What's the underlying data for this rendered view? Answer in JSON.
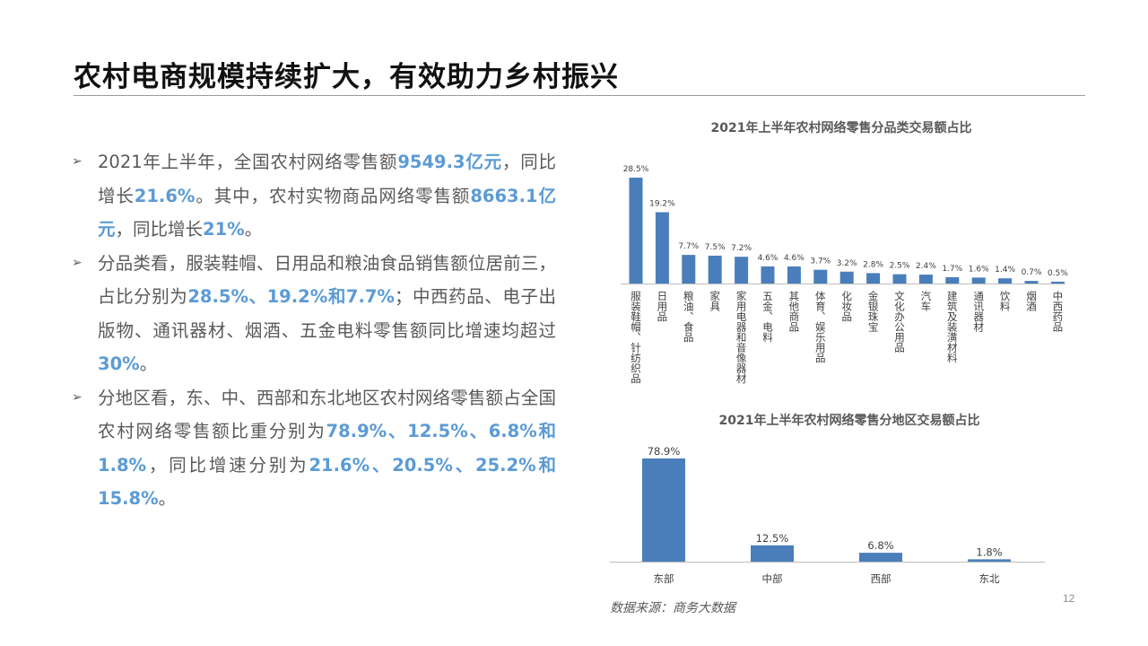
{
  "slide": {
    "title": "农村电商规模持续扩大，有效助力乡村振兴",
    "page_number": "12",
    "source": "数据来源：商务大数据",
    "accent_color": "#5b9bd5",
    "bar_color": "#4a7ebb"
  },
  "bullets": [
    {
      "runs": [
        {
          "text": "2021年上半年，全国农村网络零售额",
          "hl": false
        },
        {
          "text": "9549.3亿元",
          "hl": true
        },
        {
          "text": "，同比增长",
          "hl": false
        },
        {
          "text": "21.6%",
          "hl": true
        },
        {
          "text": "。其中，农村实物商品网络零售额",
          "hl": false
        },
        {
          "text": "8663.1亿元",
          "hl": true
        },
        {
          "text": "，同比增长",
          "hl": false
        },
        {
          "text": "21%",
          "hl": true
        },
        {
          "text": "。",
          "hl": false
        }
      ]
    },
    {
      "runs": [
        {
          "text": "分品类看，服装鞋帽、日用品和粮油食品销售额位居前三，占比分别为",
          "hl": false
        },
        {
          "text": "28.5%、19.2%和7.7%",
          "hl": true
        },
        {
          "text": "；中西药品、电子出版物、通讯器材、烟酒、五金电料零售额同比增速均超过",
          "hl": false
        },
        {
          "text": "30%",
          "hl": true
        },
        {
          "text": "。",
          "hl": false
        }
      ]
    },
    {
      "runs": [
        {
          "text": "分地区看，东、中、西部和东北地区农村网络零售额占全国农村网络零售额比重分别为",
          "hl": false
        },
        {
          "text": "78.9%、12.5%、6.8%和1.8%",
          "hl": true
        },
        {
          "text": "，同比增速分别为",
          "hl": false
        },
        {
          "text": "21.6%、20.5%、25.2%和15.8%",
          "hl": true
        },
        {
          "text": "。",
          "hl": false
        }
      ]
    }
  ],
  "chart_data": [
    {
      "type": "bar",
      "title": "2021年上半年农村网络零售分品类交易额占比",
      "categories": [
        "服装鞋帽、针纺织品",
        "日用品",
        "粮油、食品",
        "家具",
        "家用电器和音像器材",
        "五金、电料",
        "其他商品",
        "体育、娱乐用品",
        "化妆品",
        "金银珠宝",
        "文化办公用品",
        "汽车",
        "建筑及装潢材料",
        "通讯器材",
        "饮料",
        "烟酒",
        "中西药品"
      ],
      "values": [
        28.5,
        19.2,
        7.7,
        7.5,
        7.2,
        4.6,
        4.6,
        3.7,
        3.2,
        2.8,
        2.5,
        2.4,
        1.7,
        1.6,
        1.4,
        0.7,
        0.5
      ],
      "data_labels": [
        "28.5%",
        "19.2%",
        "7.7%",
        "7.5%",
        "7.2%",
        "4.6%",
        "4.6%",
        "3.7%",
        "3.2%",
        "2.8%",
        "2.5%",
        "2.4%",
        "1.7%",
        "1.6%",
        "1.4%",
        "0.7%",
        "0.5%"
      ],
      "unit": "%",
      "grid": false,
      "legend": "none"
    },
    {
      "type": "bar",
      "title": "2021年上半年农村网络零售分地区交易额占比",
      "categories": [
        "东部",
        "中部",
        "西部",
        "东北"
      ],
      "values": [
        78.9,
        12.5,
        6.8,
        1.8
      ],
      "data_labels": [
        "78.9%",
        "12.5%",
        "6.8%",
        "1.8%"
      ],
      "unit": "%",
      "grid": false,
      "legend": "none"
    }
  ]
}
